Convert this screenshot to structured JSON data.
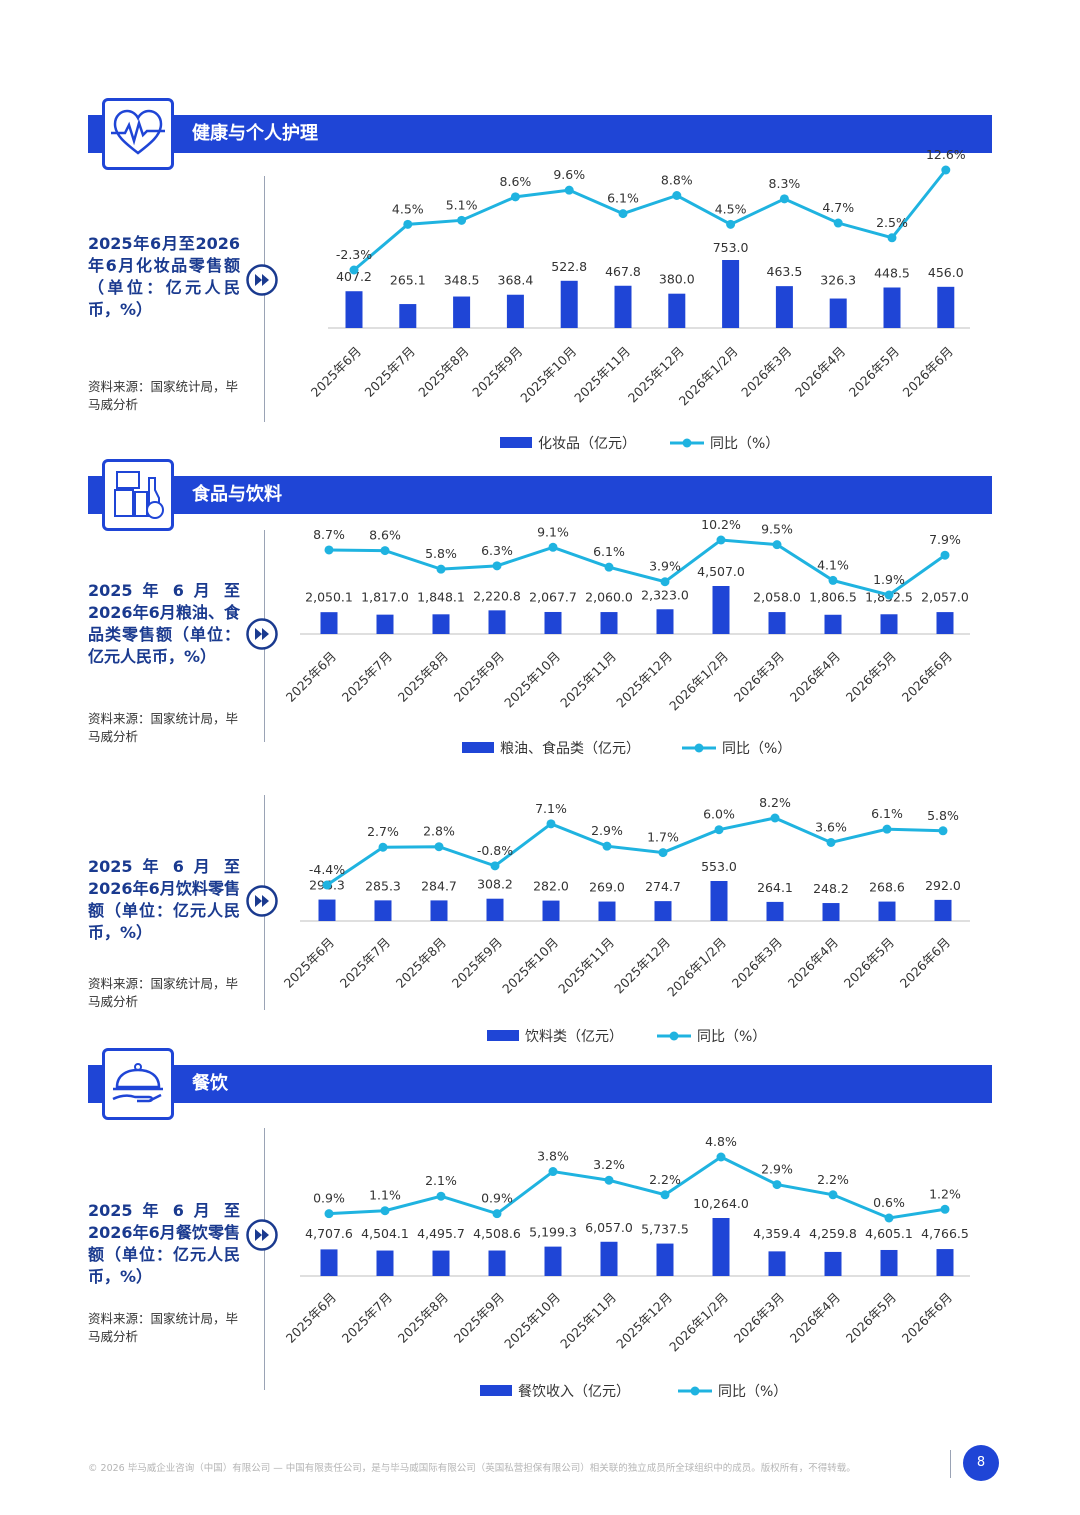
{
  "sections": [
    {
      "title": "健康与个人护理",
      "icon": "heart-pulse-icon"
    },
    {
      "title": "食品与饮料",
      "icon": "food-drink-icon"
    },
    {
      "title": "餐饮",
      "icon": "cloche-dish-icon"
    }
  ],
  "charts": [
    {
      "description": "2025年6月至2026年6月化妆品零售额（单位：亿元人民币，%）",
      "source": "资料来源：国家统计局，毕马威分析"
    },
    {
      "description": "2025 年 6 月 至 2026年6月粮油、食品类零售额（单位：亿元人民币，%）",
      "source": "资料来源：国家统计局，毕马威分析"
    },
    {
      "description": "2025 年 6 月 至 2026年6月饮料零售额（单位：亿元人民币，%）",
      "source": "资料来源：国家统计局，毕马威分析"
    },
    {
      "description": "2025 年 6 月 至 2026年6月餐饮零售额（单位：亿元人民币，%）",
      "source": "资料来源：国家统计局，毕马威分析"
    }
  ],
  "chart_data": [
    {
      "type": "bar+line",
      "categories": [
        "2025年6月",
        "2025年7月",
        "2025年8月",
        "2025年9月",
        "2025年10月",
        "2025年11月",
        "2025年12月",
        "2026年1/2月",
        "2026年3月",
        "2026年4月",
        "2026年5月",
        "2026年6月"
      ],
      "series": [
        {
          "name": "化妆品（亿元）",
          "type": "bar",
          "values": [
            407.2,
            265.1,
            348.5,
            368.4,
            522.8,
            467.8,
            380.0,
            753.0,
            463.5,
            326.3,
            448.5,
            456.0
          ],
          "labels": [
            "407.2",
            "265.1",
            "348.5",
            "368.4",
            "522.8",
            "467.8",
            "380.0",
            "753.0",
            "463.5",
            "326.3",
            "448.5",
            "456.0"
          ]
        },
        {
          "name": "同比（%）",
          "type": "line",
          "values": [
            -2.3,
            4.5,
            5.1,
            8.6,
            9.6,
            6.1,
            8.8,
            4.5,
            8.3,
            4.7,
            2.5,
            12.6
          ],
          "labels": [
            "-2.3%",
            "4.5%",
            "5.1%",
            "8.6%",
            "9.6%",
            "6.1%",
            "8.8%",
            "4.5%",
            "8.3%",
            "4.7%",
            "2.5%",
            "12.6%"
          ]
        }
      ],
      "colors": {
        "bar": "#1f45d6",
        "line": "#1fb3e0"
      },
      "legend_position": "bottom"
    },
    {
      "type": "bar+line",
      "categories": [
        "2025年6月",
        "2025年7月",
        "2025年8月",
        "2025年9月",
        "2025年10月",
        "2025年11月",
        "2025年12月",
        "2026年1/2月",
        "2026年3月",
        "2026年4月",
        "2026年5月",
        "2026年6月"
      ],
      "series": [
        {
          "name": "粮油、食品类（亿元）",
          "type": "bar",
          "values": [
            2050.1,
            1817.0,
            1848.1,
            2220.8,
            2067.7,
            2060.0,
            2323.0,
            4507.0,
            2058.0,
            1806.5,
            1852.5,
            2057.0
          ],
          "labels": [
            "2,050.1",
            "1,817.0",
            "1,848.1",
            "2,220.8",
            "2,067.7",
            "2,060.0",
            "2,323.0",
            "4,507.0",
            "2,058.0",
            "1,806.5",
            "1,852.5",
            "2,057.0"
          ]
        },
        {
          "name": "同比（%）",
          "type": "line",
          "values": [
            8.7,
            8.6,
            5.8,
            6.3,
            9.1,
            6.1,
            3.9,
            10.2,
            9.5,
            4.1,
            1.9,
            7.9
          ],
          "labels": [
            "8.7%",
            "8.6%",
            "5.8%",
            "6.3%",
            "9.1%",
            "6.1%",
            "3.9%",
            "10.2%",
            "9.5%",
            "4.1%",
            "1.9%",
            "7.9%"
          ]
        }
      ],
      "colors": {
        "bar": "#1f45d6",
        "line": "#1fb3e0"
      },
      "legend_position": "bottom"
    },
    {
      "type": "bar+line",
      "categories": [
        "2025年6月",
        "2025年7月",
        "2025年8月",
        "2025年9月",
        "2025年10月",
        "2025年11月",
        "2025年12月",
        "2026年1/2月",
        "2026年3月",
        "2026年4月",
        "2026年5月",
        "2026年6月"
      ],
      "series": [
        {
          "name": "饮料类（亿元）",
          "type": "bar",
          "values": [
            296.3,
            285.3,
            284.7,
            308.2,
            282.0,
            269.0,
            274.7,
            553.0,
            264.1,
            248.2,
            268.6,
            292.0
          ],
          "labels": [
            "296.3",
            "285.3",
            "284.7",
            "308.2",
            "282.0",
            "269.0",
            "274.7",
            "553.0",
            "264.1",
            "248.2",
            "268.6",
            "292.0"
          ]
        },
        {
          "name": "同比（%）",
          "type": "line",
          "values": [
            -4.4,
            2.7,
            2.8,
            -0.8,
            7.1,
            2.9,
            1.7,
            6.0,
            8.2,
            3.6,
            6.1,
            5.8
          ],
          "labels": [
            "-4.4%",
            "2.7%",
            "2.8%",
            "-0.8%",
            "7.1%",
            "2.9%",
            "1.7%",
            "6.0%",
            "8.2%",
            "3.6%",
            "6.1%",
            "5.8%"
          ]
        }
      ],
      "colors": {
        "bar": "#1f45d6",
        "line": "#1fb3e0"
      },
      "legend_position": "bottom"
    },
    {
      "type": "bar+line",
      "categories": [
        "2025年6月",
        "2025年7月",
        "2025年8月",
        "2025年9月",
        "2025年10月",
        "2025年11月",
        "2025年12月",
        "2026年1/2月",
        "2026年3月",
        "2026年4月",
        "2026年5月",
        "2026年6月"
      ],
      "series": [
        {
          "name": "餐饮收入（亿元）",
          "type": "bar",
          "values": [
            4707.6,
            4504.1,
            4495.7,
            4508.6,
            5199.3,
            6057.0,
            5737.5,
            10264.0,
            4359.4,
            4259.8,
            4605.1,
            4766.5
          ],
          "labels": [
            "4,707.6",
            "4,504.1",
            "4,495.7",
            "4,508.6",
            "5,199.3",
            "6,057.0",
            "5,737.5",
            "10,264.0",
            "4,359.4",
            "4,259.8",
            "4,605.1",
            "4,766.5"
          ]
        },
        {
          "name": "同比（%）",
          "type": "line",
          "values": [
            0.9,
            1.1,
            2.1,
            0.9,
            3.8,
            3.2,
            2.2,
            4.8,
            2.9,
            2.2,
            0.6,
            1.2
          ],
          "labels": [
            "0.9%",
            "1.1%",
            "2.1%",
            "0.9%",
            "3.8%",
            "3.2%",
            "2.2%",
            "4.8%",
            "2.9%",
            "2.2%",
            "0.6%",
            "1.2%"
          ]
        }
      ],
      "colors": {
        "bar": "#1f45d6",
        "line": "#1fb3e0"
      },
      "legend_position": "bottom"
    }
  ],
  "footer": {
    "copyright": "© 2026 毕马威企业咨询（中国）有限公司 — 中国有限责任公司，是与毕马威国际有限公司（英国私营担保有限公司）相关联的独立成员所全球组织中的成员。版权所有，不得转载。",
    "page": "8"
  }
}
